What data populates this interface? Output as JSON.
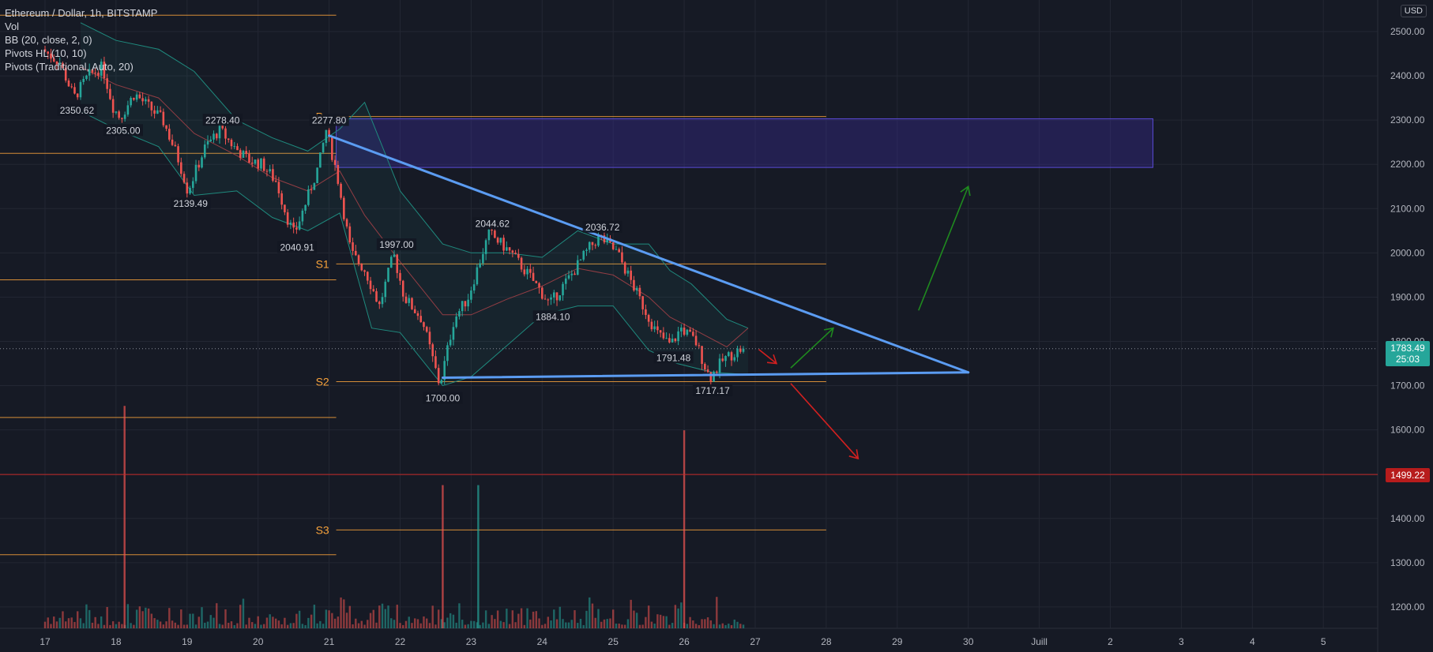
{
  "header": {
    "symbol": "Ethereum / Dollar, 1h, BITSTAMP",
    "indicators": [
      "Vol",
      "BB (20, close, 2, 0)",
      "Pivots HL (10, 10)",
      "Pivots (Traditional, Auto, 20)"
    ]
  },
  "currency_button": "USD",
  "colors": {
    "background": "#161a25",
    "up": "#26a69a",
    "down": "#ef5350",
    "pivot": "#f7a23b",
    "trendline": "#5b9cf2",
    "zone": "#3b2fa0",
    "arrow_up": "#1f8a1f",
    "arrow_down": "#d32020"
  },
  "current_price": {
    "value": "1783.49",
    "countdown": "25:03"
  },
  "alert_price": {
    "value": "1499.22"
  },
  "chart_data": {
    "type": "candlestick",
    "title": "Ethereum / Dollar, 1h, BITSTAMP",
    "y_axis": {
      "ticks": [
        "2500.00",
        "2400.00",
        "2300.00",
        "2200.00",
        "2100.00",
        "2000.00",
        "1900.00",
        "1800.00",
        "1700.00",
        "1600.00",
        "1500.00",
        "1400.00",
        "1300.00",
        "1200.00"
      ],
      "values": [
        2500,
        2400,
        2300,
        2200,
        2100,
        2000,
        1900,
        1800,
        1700,
        1600,
        1500,
        1400,
        1300,
        1200
      ],
      "ylim": [
        1145,
        2570
      ]
    },
    "x_axis": {
      "ticks": [
        "17",
        "18",
        "19",
        "20",
        "21",
        "22",
        "23",
        "24",
        "25",
        "26",
        "27",
        "28",
        "29",
        "30",
        "Juill",
        "2",
        "3",
        "4",
        "5"
      ],
      "day_index": [
        0,
        1,
        2,
        3,
        4,
        5,
        6,
        7,
        8,
        9,
        10,
        11,
        12,
        13,
        14,
        15,
        16,
        17,
        18
      ]
    },
    "price_path": [
      [
        0.0,
        2460
      ],
      [
        0.25,
        2430
      ],
      [
        0.45,
        2350.62
      ],
      [
        0.65,
        2400
      ],
      [
        0.85,
        2420
      ],
      [
        1.0,
        2330
      ],
      [
        1.1,
        2305
      ],
      [
        1.3,
        2360
      ],
      [
        1.5,
        2330
      ],
      [
        1.7,
        2300
      ],
      [
        1.9,
        2220
      ],
      [
        2.0,
        2170
      ],
      [
        2.05,
        2139.49
      ],
      [
        2.3,
        2240
      ],
      [
        2.5,
        2278.4
      ],
      [
        2.7,
        2240
      ],
      [
        2.9,
        2210
      ],
      [
        3.1,
        2200
      ],
      [
        3.3,
        2160
      ],
      [
        3.45,
        2080
      ],
      [
        3.55,
        2040.91
      ],
      [
        3.75,
        2130
      ],
      [
        3.9,
        2200
      ],
      [
        4.0,
        2277.8
      ],
      [
        4.15,
        2180
      ],
      [
        4.35,
        2000
      ],
      [
        4.55,
        1960
      ],
      [
        4.75,
        1880
      ],
      [
        4.95,
        1997
      ],
      [
        5.1,
        1900
      ],
      [
        5.35,
        1850
      ],
      [
        5.6,
        1700
      ],
      [
        5.8,
        1850
      ],
      [
        6.0,
        1900
      ],
      [
        6.2,
        2000
      ],
      [
        6.3,
        2044.62
      ],
      [
        6.6,
        2000
      ],
      [
        6.9,
        1940
      ],
      [
        7.15,
        1884.1
      ],
      [
        7.45,
        1950
      ],
      [
        7.7,
        2010
      ],
      [
        7.85,
        2036.72
      ],
      [
        8.1,
        2000
      ],
      [
        8.4,
        1900
      ],
      [
        8.65,
        1820
      ],
      [
        8.85,
        1791.48
      ],
      [
        9.0,
        1830
      ],
      [
        9.2,
        1800
      ],
      [
        9.4,
        1717.17
      ],
      [
        9.6,
        1760
      ],
      [
        9.85,
        1783.49
      ]
    ],
    "bb_upper_path": [
      [
        0.5,
        2520
      ],
      [
        1.0,
        2480
      ],
      [
        1.6,
        2460
      ],
      [
        2.1,
        2410
      ],
      [
        2.7,
        2300
      ],
      [
        3.2,
        2260
      ],
      [
        3.7,
        2230
      ],
      [
        4.15,
        2280
      ],
      [
        4.5,
        2340
      ],
      [
        5.0,
        2140
      ],
      [
        5.6,
        2020
      ],
      [
        6.0,
        2000
      ],
      [
        6.5,
        2000
      ],
      [
        7.0,
        1990
      ],
      [
        7.5,
        2050
      ],
      [
        8.0,
        2020
      ],
      [
        8.5,
        2020
      ],
      [
        8.8,
        1960
      ],
      [
        9.1,
        1930
      ],
      [
        9.6,
        1850
      ],
      [
        9.9,
        1830
      ]
    ],
    "bb_lower_path": [
      [
        0.5,
        2320
      ],
      [
        1.0,
        2280
      ],
      [
        1.6,
        2240
      ],
      [
        2.1,
        2130
      ],
      [
        2.7,
        2140
      ],
      [
        3.2,
        2080
      ],
      [
        3.7,
        2050
      ],
      [
        4.15,
        2090
      ],
      [
        4.6,
        1830
      ],
      [
        5.0,
        1820
      ],
      [
        5.6,
        1700
      ],
      [
        6.0,
        1720
      ],
      [
        6.5,
        1790
      ],
      [
        7.0,
        1860
      ],
      [
        7.5,
        1880
      ],
      [
        8.0,
        1880
      ],
      [
        8.5,
        1780
      ],
      [
        8.9,
        1750
      ],
      [
        9.4,
        1730
      ],
      [
        9.9,
        1725
      ]
    ],
    "volume_spikes": [
      {
        "day": 1.12,
        "height": 0.73
      },
      {
        "day": 5.6,
        "height": 0.47
      },
      {
        "day": 6.1,
        "height": 0.47
      },
      {
        "day": 9.0,
        "height": 0.65
      }
    ],
    "pivot_levels": [
      {
        "label": "P",
        "value": 2308,
        "from_day": 4.1,
        "to_day": 11.0
      },
      {
        "label": "S1",
        "value": 1975,
        "from_day": 4.1,
        "to_day": 11.0
      },
      {
        "label": "S2",
        "value": 1709,
        "from_day": 4.1,
        "to_day": 11.0
      },
      {
        "label": "S3",
        "value": 1374,
        "from_day": 4.1,
        "to_day": 11.0
      },
      {
        "label": "",
        "value": 2537,
        "from_day": -0.7,
        "to_day": 4.1
      },
      {
        "label": "",
        "value": 2225,
        "from_day": -0.7,
        "to_day": 4.1
      },
      {
        "label": "",
        "value": 1939,
        "from_day": -0.7,
        "to_day": 4.1
      },
      {
        "label": "",
        "value": 1628,
        "from_day": -0.7,
        "to_day": 4.1
      },
      {
        "label": "",
        "value": 1318,
        "from_day": -0.7,
        "to_day": 4.1
      }
    ],
    "hl_labels": [
      {
        "text": "2350.62",
        "day": 0.45,
        "value": 2350.62,
        "pos": "below"
      },
      {
        "text": "2305.00",
        "day": 1.1,
        "value": 2305.0,
        "pos": "below"
      },
      {
        "text": "2278.40",
        "day": 2.5,
        "value": 2278.4,
        "pos": "above"
      },
      {
        "text": "2139.49",
        "day": 2.05,
        "value": 2139.49,
        "pos": "below"
      },
      {
        "text": "2277.80",
        "day": 4.0,
        "value": 2277.8,
        "pos": "above"
      },
      {
        "text": "2040.91",
        "day": 3.55,
        "value": 2040.91,
        "pos": "below"
      },
      {
        "text": "1997.00",
        "day": 4.95,
        "value": 1997.0,
        "pos": "above"
      },
      {
        "text": "1700.00",
        "day": 5.6,
        "value": 1700.0,
        "pos": "below"
      },
      {
        "text": "2044.62",
        "day": 6.3,
        "value": 2044.62,
        "pos": "above"
      },
      {
        "text": "1884.10",
        "day": 7.15,
        "value": 1884.1,
        "pos": "below"
      },
      {
        "text": "2036.72",
        "day": 7.85,
        "value": 2036.72,
        "pos": "above"
      },
      {
        "text": "1791.48",
        "day": 8.85,
        "value": 1791.48,
        "pos": "below"
      },
      {
        "text": "1717.17",
        "day": 9.4,
        "value": 1717.17,
        "pos": "below"
      }
    ],
    "resistance_zone": {
      "from_day": 4.1,
      "to_day": 15.6,
      "top": 2303,
      "bottom": 2193
    },
    "trendlines": [
      {
        "name": "descending",
        "from": [
          4.0,
          2265
        ],
        "to": [
          13.0,
          1730
        ]
      },
      {
        "name": "support",
        "from": [
          5.6,
          1718
        ],
        "to": [
          13.0,
          1730
        ]
      }
    ],
    "arrows": [
      {
        "kind": "up",
        "from": [
          12.3,
          1870
        ],
        "to": [
          13.0,
          2150
        ]
      },
      {
        "kind": "up",
        "from": [
          10.5,
          1740
        ],
        "to": [
          11.1,
          1830
        ]
      },
      {
        "kind": "down",
        "from": [
          10.5,
          1705
        ],
        "to": [
          11.45,
          1535
        ]
      },
      {
        "kind": "down",
        "from": [
          10.05,
          1782
        ],
        "to": [
          10.3,
          1750
        ]
      }
    ]
  }
}
